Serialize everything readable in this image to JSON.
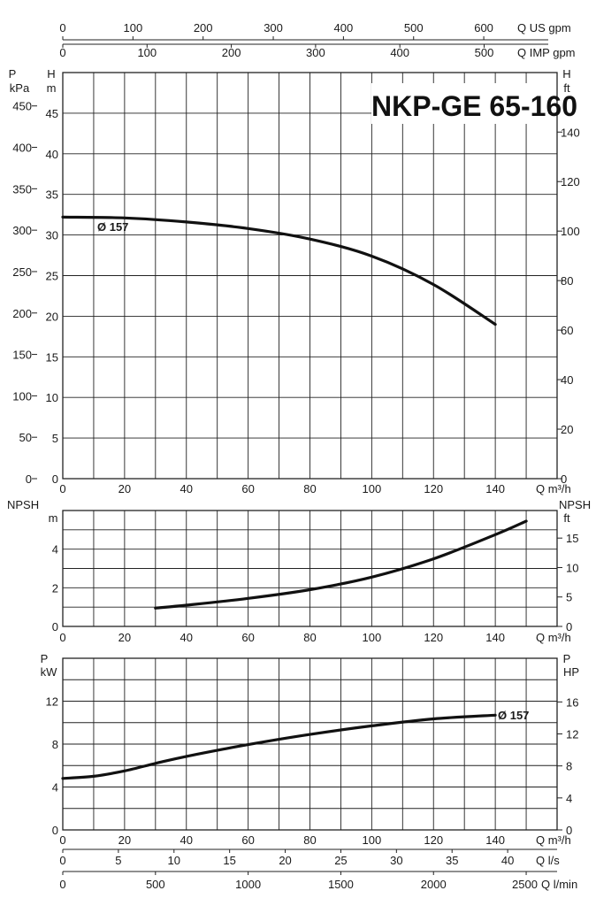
{
  "title": "NKP-GE 65-160",
  "chart_data": [
    {
      "type": "line",
      "name": "head",
      "x": [
        0,
        20,
        40,
        60,
        80,
        100,
        120,
        140
      ],
      "series": [
        {
          "name": "Ø 157",
          "values": [
            32.2,
            32.1,
            31.6,
            30.8,
            29.5,
            27.4,
            23.9,
            19.0
          ]
        }
      ],
      "xlabel": "Q m³/h",
      "ylabel_left": "H m",
      "ylabel_left_outer": "P kPa",
      "ylabel_right": "H ft",
      "xlim": [
        0,
        160
      ],
      "ylim": [
        0,
        50
      ],
      "yticks": [
        0,
        5,
        10,
        15,
        20,
        25,
        30,
        35,
        40,
        45
      ],
      "ticks_kpa": [
        0,
        50,
        100,
        150,
        200,
        250,
        300,
        350,
        400,
        450
      ],
      "ticks_ft": [
        0,
        20,
        40,
        60,
        80,
        100,
        120,
        140
      ],
      "top_axes": [
        {
          "label": "Q US gpm",
          "ticks": [
            0,
            100,
            200,
            300,
            400,
            500,
            600
          ]
        },
        {
          "label": "Q IMP gpm",
          "ticks": [
            0,
            100,
            200,
            300,
            400,
            500
          ]
        }
      ],
      "grid": true
    },
    {
      "type": "line",
      "name": "npsh",
      "x": [
        30,
        40,
        60,
        80,
        100,
        120,
        140,
        150
      ],
      "series": [
        {
          "name": "NPSH",
          "values": [
            0.95,
            1.1,
            1.45,
            1.9,
            2.55,
            3.5,
            4.75,
            5.45
          ]
        }
      ],
      "xlabel": "Q m³/h",
      "ylabel_left": "NPSH m",
      "ylabel_right": "NPSH ft",
      "xlim": [
        0,
        160
      ],
      "ylim": [
        0,
        6
      ],
      "yticks": [
        0,
        2,
        4
      ],
      "ticks_ft": [
        0,
        5,
        10,
        15
      ],
      "grid": true
    },
    {
      "type": "line",
      "name": "power",
      "x": [
        0,
        10,
        20,
        30,
        40,
        60,
        80,
        100,
        120,
        140
      ],
      "series": [
        {
          "name": "Ø 157",
          "values": [
            4.8,
            5.0,
            5.5,
            6.2,
            6.85,
            7.95,
            8.9,
            9.7,
            10.35,
            10.7
          ]
        }
      ],
      "xlabel": "Q m³/h",
      "ylabel_left": "P kW",
      "ylabel_right": "P HP",
      "xlim": [
        0,
        160
      ],
      "ylim": [
        0,
        16
      ],
      "yticks": [
        0,
        4,
        8,
        12
      ],
      "ticks_hp": [
        0,
        4,
        8,
        12,
        16
      ],
      "bottom_axes": [
        {
          "label": "Q m³/h",
          "ticks": [
            0,
            20,
            40,
            60,
            80,
            100,
            120,
            140
          ]
        },
        {
          "label": "Q l/s",
          "ticks": [
            0,
            5,
            10,
            15,
            20,
            25,
            30,
            35,
            40
          ]
        },
        {
          "label": "Q l/min",
          "ticks": [
            0,
            500,
            1000,
            1500,
            2000,
            2500
          ]
        }
      ],
      "grid": true
    }
  ],
  "labels": {
    "p": "P",
    "kpa": "kPa",
    "h": "H",
    "m": "m",
    "ft": "ft",
    "npsh": "NPSH",
    "kw": "kW",
    "hp": "HP",
    "q_m3h": "Q m³/h",
    "q_ls": "Q l/s",
    "q_lmin": "Q l/min",
    "q_us": "Q US gpm",
    "q_imp": "Q IMP gpm",
    "curve_head": "Ø 157",
    "curve_power": "Ø 157"
  }
}
